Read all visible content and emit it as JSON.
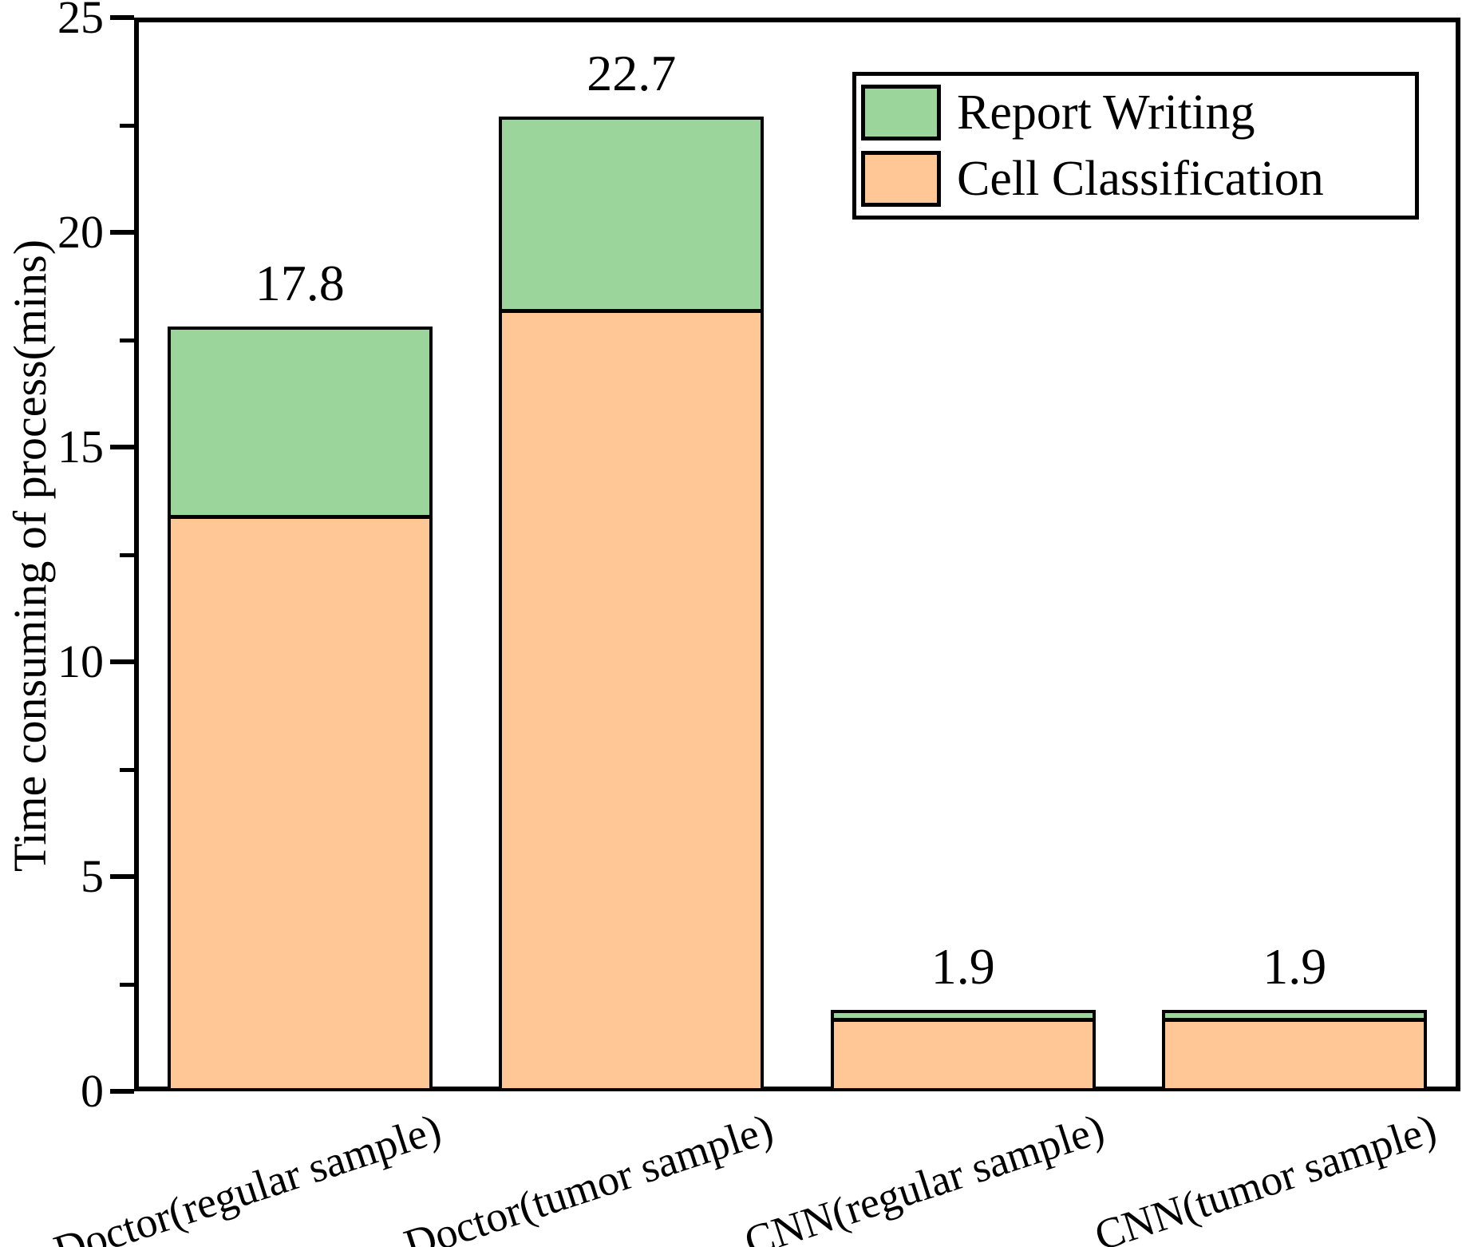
{
  "chart_data": {
    "type": "bar",
    "stacked": true,
    "title": "",
    "xlabel": "",
    "ylabel": "Time consuming of process(mins)",
    "categories": [
      "Doctor(regular sample)",
      "Doctor(tumor sample)",
      "CNN(regular sample)",
      "CNN(tumor sample)"
    ],
    "series": [
      {
        "name": "Cell Classification",
        "color": "#FEC795",
        "values": [
          13.4,
          18.2,
          1.7,
          1.7
        ]
      },
      {
        "name": "Report Writing",
        "color": "#9BD59B",
        "values": [
          4.4,
          4.5,
          0.2,
          0.2
        ]
      }
    ],
    "totals": [
      17.8,
      22.7,
      1.9,
      1.9
    ],
    "total_labels": [
      "17.8",
      "22.7",
      "1.9",
      "1.9"
    ],
    "ylim": [
      0,
      25
    ],
    "yticks_major": [
      0,
      5,
      10,
      15,
      20,
      25
    ],
    "yticks_minor": [
      2.5,
      7.5,
      12.5,
      17.5,
      22.5
    ],
    "grid": false,
    "bar_edge_color": "#000000",
    "axis_color": "#000000",
    "legend_position": "top-right",
    "legend": {
      "items": [
        {
          "label": "Report Writing",
          "color": "#9BD59B"
        },
        {
          "label": "Cell Classification",
          "color": "#FEC795"
        }
      ]
    }
  }
}
